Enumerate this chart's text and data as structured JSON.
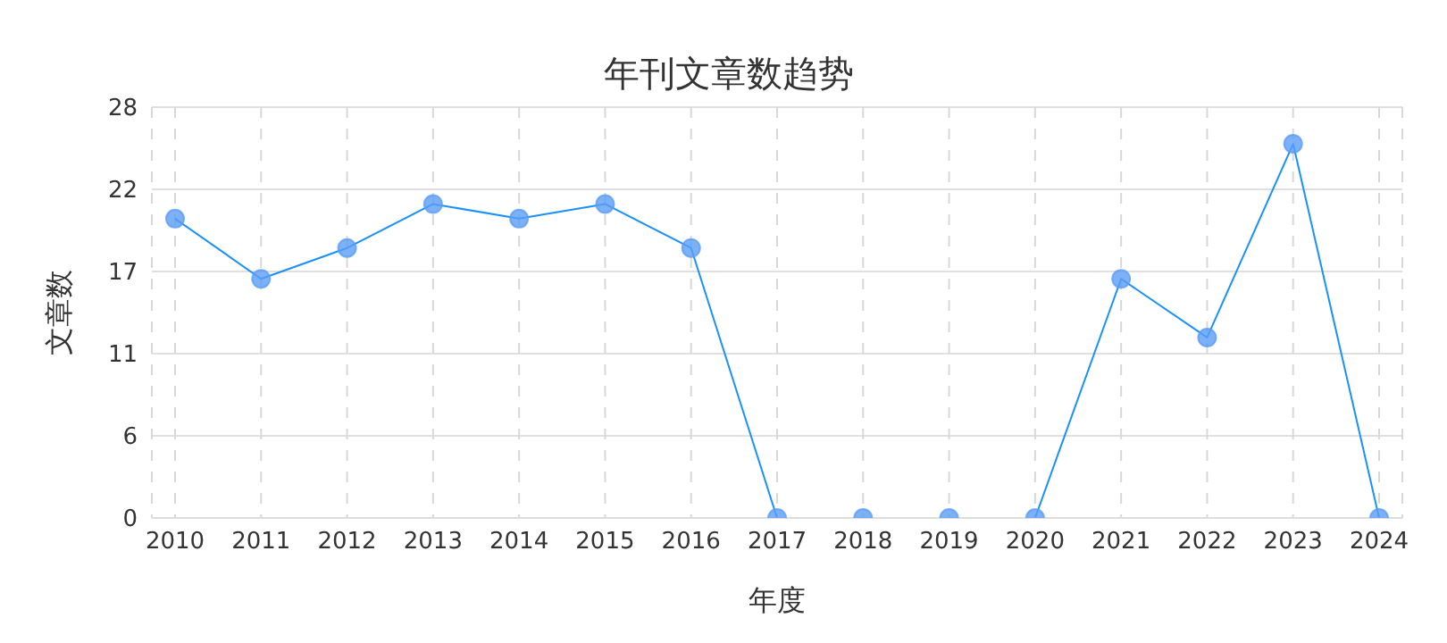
{
  "chart_data": {
    "type": "line",
    "title": "年刊文章数趋势",
    "xlabel": "年度",
    "ylabel": "文章数",
    "categories": [
      "2010",
      "2011",
      "2012",
      "2013",
      "2014",
      "2015",
      "2016",
      "2017",
      "2018",
      "2019",
      "2020",
      "2021",
      "2022",
      "2023",
      "2024"
    ],
    "series": [
      {
        "color": "#1890ff",
        "values": [
          20.4,
          16.3,
          18.4,
          21.4,
          20.4,
          21.4,
          18.4,
          0,
          0,
          0,
          0,
          16.3,
          12.3,
          25.5,
          0
        ]
      }
    ],
    "ylim": [
      0,
      28
    ],
    "yticks": [
      0,
      {
        "value": 5.6,
        "label": "6"
      },
      {
        "value": 11.2,
        "label": "11"
      },
      {
        "value": 16.8,
        "label": "17"
      },
      {
        "value": 22.4,
        "label": "22"
      },
      28
    ],
    "grid": true,
    "marker": "circle",
    "line_style": "solid"
  }
}
